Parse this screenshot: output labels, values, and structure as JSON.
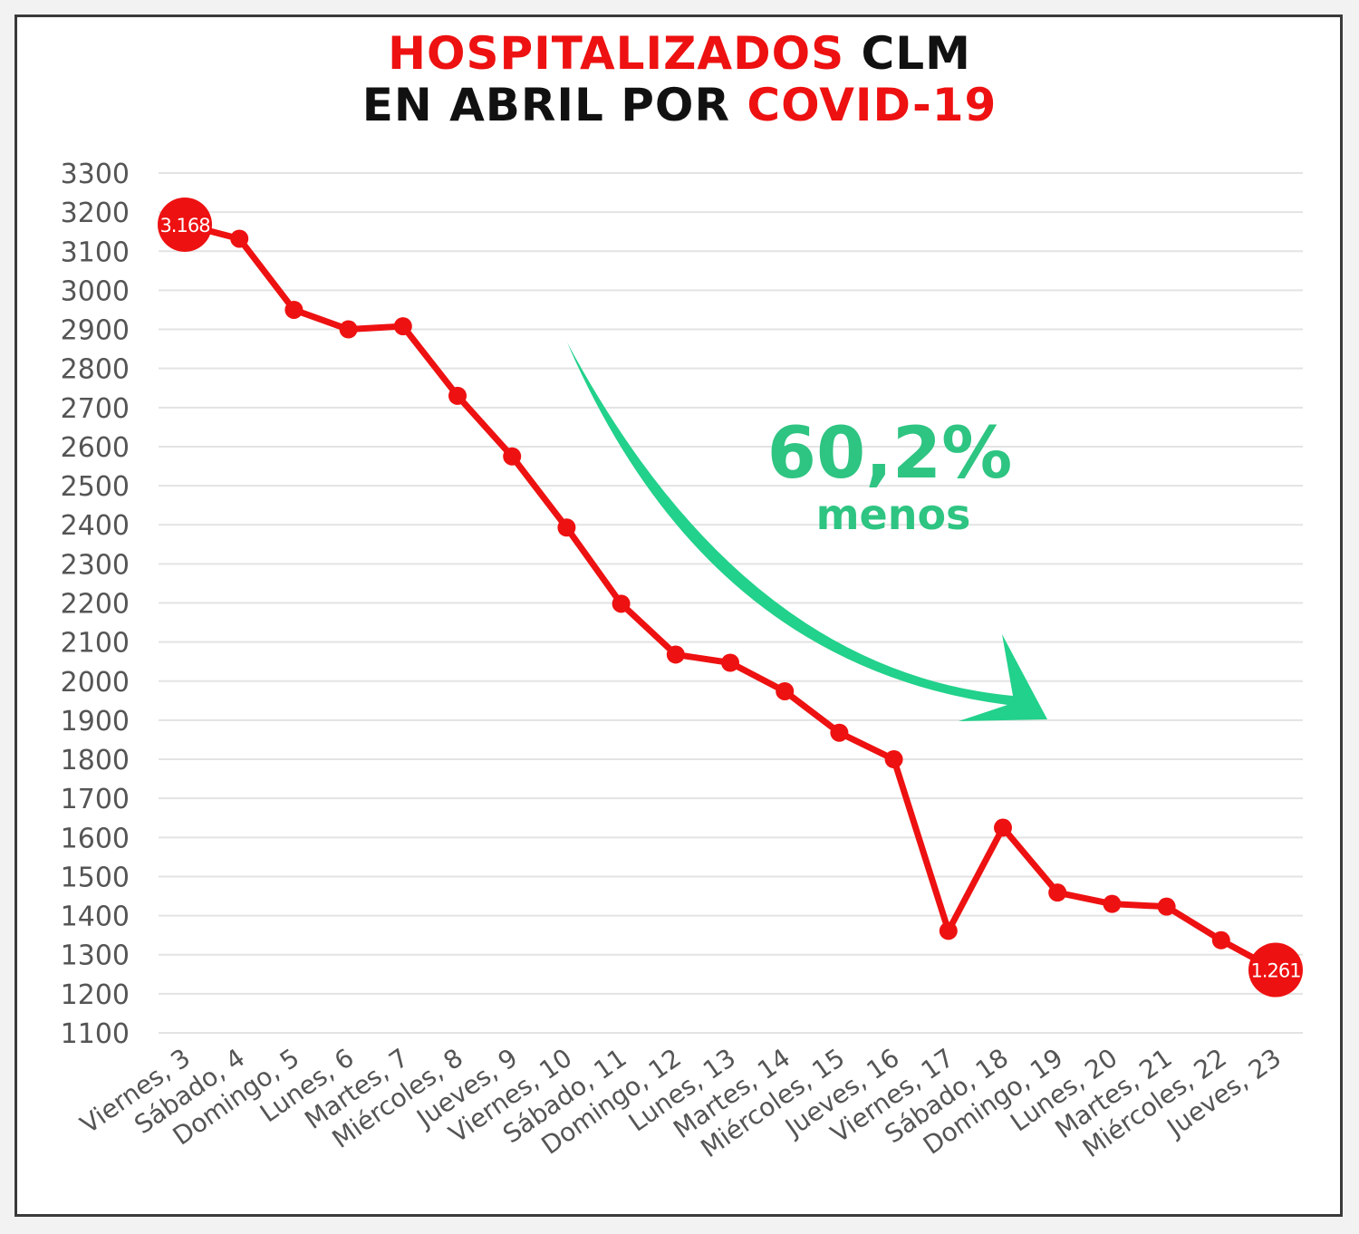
{
  "colors": {
    "line": "#ee1111",
    "marker": "#ee1111",
    "arrow": "#22d18b",
    "annotation": "#2ec482",
    "grid": "#e3e3e3",
    "axis_text": "#555555",
    "title_red": "#ee1111",
    "title_black": "#111111"
  },
  "title": {
    "line1_red": "HOSPITALIZADOS",
    "line1_black": "CLM",
    "line2_black": "EN ABRIL POR",
    "line2_red": "COVID-19"
  },
  "chart_data": {
    "type": "line",
    "title": "HOSPITALIZADOS CLM EN ABRIL POR COVID-19",
    "xlabel": "",
    "ylabel": "",
    "categories": [
      "Viernes, 3",
      "Sábado, 4",
      "Domingo, 5",
      "Lunes, 6",
      "Martes, 7",
      "Miércoles, 8",
      "Jueves, 9",
      "Viernes, 10",
      "Sábado, 11",
      "Domingo, 12",
      "Lunes, 13",
      "Martes, 14",
      "Miércoles, 15",
      "Jueves, 16",
      "Viernes, 17",
      "Sábado, 18",
      "Domingo, 19",
      "Lunes, 20",
      "Martes, 21",
      "Miércoles, 22",
      "Jueves, 23"
    ],
    "series": [
      {
        "values": [
          3168,
          3132,
          2950,
          2900,
          2908,
          2730,
          2575,
          2393,
          2198,
          2068,
          2047,
          1974,
          1868,
          1800,
          1361,
          1625,
          1459,
          1430,
          1423,
          1337,
          1261
        ]
      }
    ],
    "ylim": [
      1100,
      3300
    ],
    "yticks": [
      3300,
      3200,
      3100,
      3000,
      2900,
      2800,
      2700,
      2600,
      2500,
      2400,
      2300,
      2200,
      2100,
      2000,
      1900,
      1800,
      1700,
      1600,
      1500,
      1400,
      1300,
      1200,
      1100
    ],
    "grid": true,
    "legend": "none",
    "point_labels": [
      {
        "index": 0,
        "text": "3.168"
      },
      {
        "index": 20,
        "text": "1.261"
      }
    ],
    "annotation": {
      "value_text": "60,2%",
      "sub_text": "menos",
      "arrow_icon": "down-right-curved-arrow-icon"
    }
  }
}
